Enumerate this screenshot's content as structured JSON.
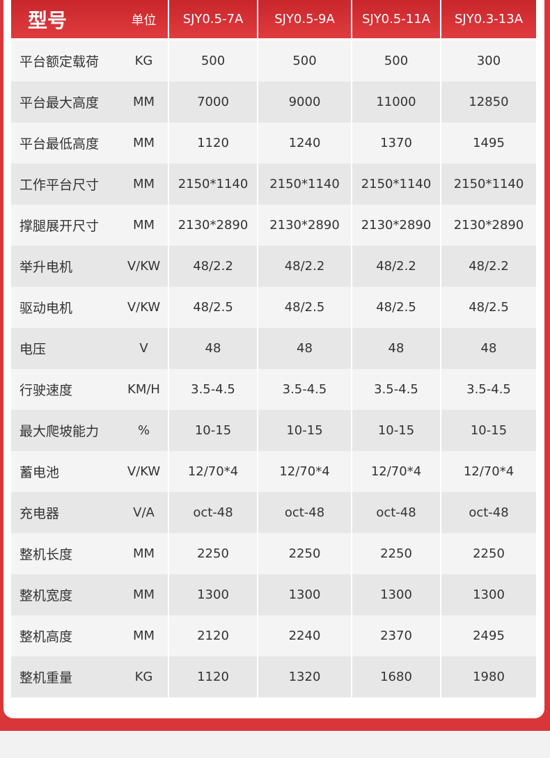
{
  "table": {
    "header": [
      "型号",
      "单位",
      "SJY0.5-7A",
      "SJY0.5-9A",
      "SJY0.5-11A",
      "SJY0.3-13A"
    ],
    "rows": [
      [
        "平台额定载荷",
        "KG",
        "500",
        "500",
        "500",
        "300"
      ],
      [
        "平台最大高度",
        "MM",
        "7000",
        "9000",
        "11000",
        "12850"
      ],
      [
        "平台最低高度",
        "MM",
        "1120",
        "1240",
        "1370",
        "1495"
      ],
      [
        "工作平台尺寸",
        "MM",
        "2150*1140",
        "2150*1140",
        "2150*1140",
        "2150*1140"
      ],
      [
        "撑腿展开尺寸",
        "MM",
        "2130*2890",
        "2130*2890",
        "2130*2890",
        "2130*2890"
      ],
      [
        "举升电机",
        "V/KW",
        "48/2.2",
        "48/2.2",
        "48/2.2",
        "48/2.2"
      ],
      [
        "驱动电机",
        "V/KW",
        "48/2.5",
        "48/2.5",
        "48/2.5",
        "48/2.5"
      ],
      [
        "电压",
        "V",
        "48",
        "48",
        "48",
        "48"
      ],
      [
        "行驶速度",
        "KM/H",
        "3.5-4.5",
        "3.5-4.5",
        "3.5-4.5",
        "3.5-4.5"
      ],
      [
        "最大爬坡能力",
        "%",
        "10-15",
        "10-15",
        "10-15",
        "10-15"
      ],
      [
        "蓄电池",
        "V/KW",
        "12/70*4",
        "12/70*4",
        "12/70*4",
        "12/70*4"
      ],
      [
        "充电器",
        "V/A",
        "oct-48",
        "oct-48",
        "oct-48",
        "oct-48"
      ],
      [
        "整机长度",
        "MM",
        "2250",
        "2250",
        "2250",
        "2250"
      ],
      [
        "整机宽度",
        "MM",
        "1300",
        "1300",
        "1300",
        "1300"
      ],
      [
        "整机高度",
        "MM",
        "2120",
        "2240",
        "2370",
        "2495"
      ],
      [
        "整机重量",
        "KG",
        "1120",
        "1320",
        "1680",
        "1980"
      ]
    ]
  }
}
